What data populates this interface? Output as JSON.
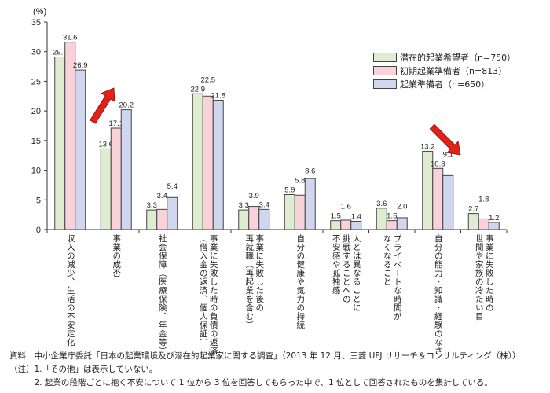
{
  "chart_data": {
    "type": "bar",
    "ylabel": "(%)",
    "ylim": [
      0,
      35
    ],
    "yticks": [
      0,
      5,
      10,
      15,
      20,
      25,
      30,
      35
    ],
    "categories": [
      "収入の減少、生活の不安定化",
      "事業の成否",
      "社会保障（医療保険、年金等）",
      "事業に失敗した時の負債の返済\n（借入金の返済、個人保証）",
      "事業に失敗した後の\n再就職（再起業を含む）",
      "自分の健康や気力の持続",
      "人とは異なることに\n挑戦することへの\n不安感や孤独感",
      "プライベートな時間が\nなくなること",
      "自分の能力・知識・経験のなさ",
      "事業に失敗した時の\n世間や家族の冷たい目"
    ],
    "series": [
      {
        "name": "潜在的起業希望者（n=750）",
        "color": "#deedd0",
        "values": [
          29.1,
          13.6,
          3.3,
          22.9,
          3.3,
          5.9,
          1.5,
          3.6,
          13.2,
          2.7
        ]
      },
      {
        "name": "初期起業準備者（n=813）",
        "color": "#f9d2d9",
        "values": [
          31.6,
          17.1,
          3.4,
          22.5,
          3.9,
          5.8,
          1.6,
          1.5,
          10.3,
          1.8
        ]
      },
      {
        "name": "起業準備者（n=650）",
        "color": "#cfd6ee",
        "values": [
          26.9,
          20.2,
          5.4,
          21.8,
          3.4,
          8.6,
          1.4,
          2.0,
          9.1,
          1.2
        ]
      }
    ],
    "annotations": [
      {
        "type": "arrow",
        "direction": "up",
        "category": "事業の成否",
        "color": "#e32119"
      },
      {
        "type": "arrow",
        "direction": "down",
        "category": "自分の能力・知識・経験のなさ",
        "color": "#e32119"
      }
    ],
    "legend": "top-right"
  },
  "notes": [
    "資料：中小企業庁委託「日本の起業環境及び潜在的起業家に関する調査」（2013 年 12 月、三菱 UFJ リサーチ＆コンサルティング（株））",
    "（注）1.「その他」は表示していない。",
    "　　　2. 起業の段階ごとに抱く不安について 1 位から 3 位を回答してもらった中で、1 位として回答されたものを集計している。"
  ]
}
